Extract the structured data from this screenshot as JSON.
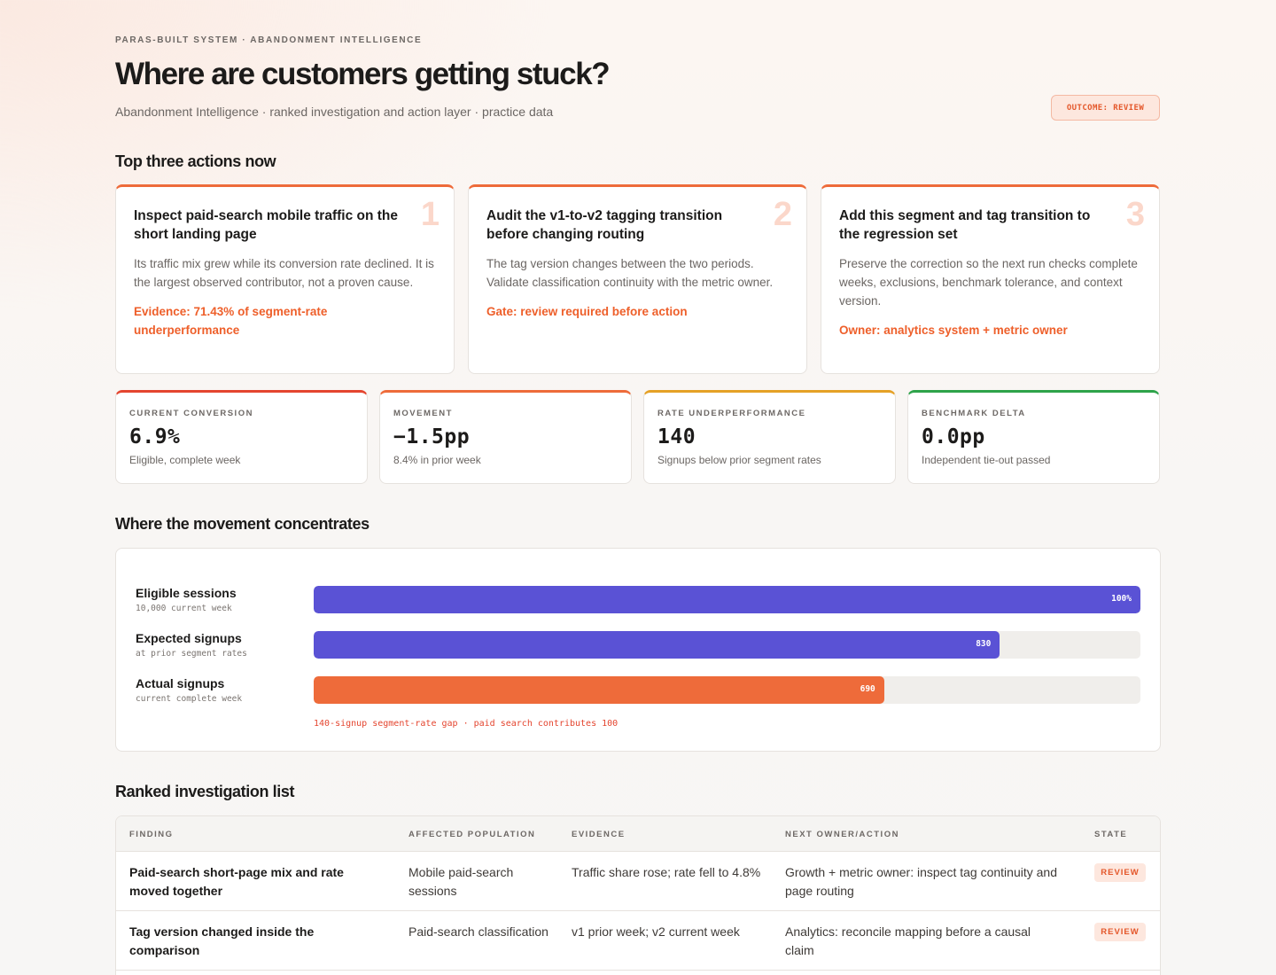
{
  "header": {
    "eyebrow": "PARAS-BUILT SYSTEM · ABANDONMENT INTELLIGENCE",
    "title": "Where are customers getting stuck?",
    "subtitle": "Abandonment Intelligence · ranked investigation and action layer · practice data",
    "outcome_badge": "OUTCOME: REVIEW"
  },
  "sections": {
    "top_actions": "Top three actions now",
    "movement": "Where the movement concentrates",
    "ranked": "Ranked investigation list"
  },
  "actions": [
    {
      "number": "1",
      "title": "Inspect paid-search mobile traffic on the short landing page",
      "body": "Its traffic mix grew while its conversion rate declined. It is the largest observed contributor, not a proven cause.",
      "note": "Evidence: 71.43% of segment-rate underperformance"
    },
    {
      "number": "2",
      "title": "Audit the v1-to-v2 tagging transition before changing routing",
      "body": "The tag version changes between the two periods. Validate classification continuity with the metric owner.",
      "note": "Gate: review required before action"
    },
    {
      "number": "3",
      "title": "Add this segment and tag transition to the regression set",
      "body": "Preserve the correction so the next run checks complete weeks, exclusions, benchmark tolerance, and context version.",
      "note": "Owner: analytics system + metric owner"
    }
  ],
  "metrics": [
    {
      "label": "CURRENT CONVERSION",
      "value": "6.9%",
      "sub": "Eligible, complete week",
      "accent": "#e4452f"
    },
    {
      "label": "MOVEMENT",
      "value": "−1.5pp",
      "sub": "8.4% in prior week",
      "accent": "#ee6b3a"
    },
    {
      "label": "RATE UNDERPERFORMANCE",
      "value": "140",
      "sub": "Signups below prior segment rates",
      "accent": "#e5a126"
    },
    {
      "label": "BENCHMARK DELTA",
      "value": "0.0pp",
      "sub": "Independent tie-out passed",
      "accent": "#2ea34a"
    }
  ],
  "movement_bars": [
    {
      "label": "Eligible sessions",
      "sub": "10,000 current week",
      "value_label": "100%",
      "fraction": 1.0,
      "color": "#5a52d5"
    },
    {
      "label": "Expected signups",
      "sub": "at prior segment rates",
      "value_label": "830",
      "fraction": 0.83,
      "color": "#5a52d5"
    },
    {
      "label": "Actual signups",
      "sub": "current complete week",
      "value_label": "690",
      "fraction": 0.69,
      "color": "#ee6b3a"
    }
  ],
  "movement_note": "140-signup segment-rate gap · paid search contributes 100",
  "table": {
    "headers": {
      "finding": "FINDING",
      "population": "AFFECTED POPULATION",
      "evidence": "EVIDENCE",
      "owner": "NEXT OWNER/ACTION",
      "state": "STATE"
    },
    "rows": [
      {
        "finding": "Paid-search short-page mix and rate moved together",
        "population": "Mobile paid-search sessions",
        "evidence": "Traffic share rose; rate fell to 4.8%",
        "owner": "Growth + metric owner: inspect tag continuity and page routing",
        "state": "REVIEW"
      },
      {
        "finding": "Tag version changed inside the comparison",
        "population": "Paid-search classification",
        "evidence": "v1 prior week; v2 current week",
        "owner": "Analytics: reconcile mapping before a causal claim",
        "state": "REVIEW"
      }
    ]
  }
}
